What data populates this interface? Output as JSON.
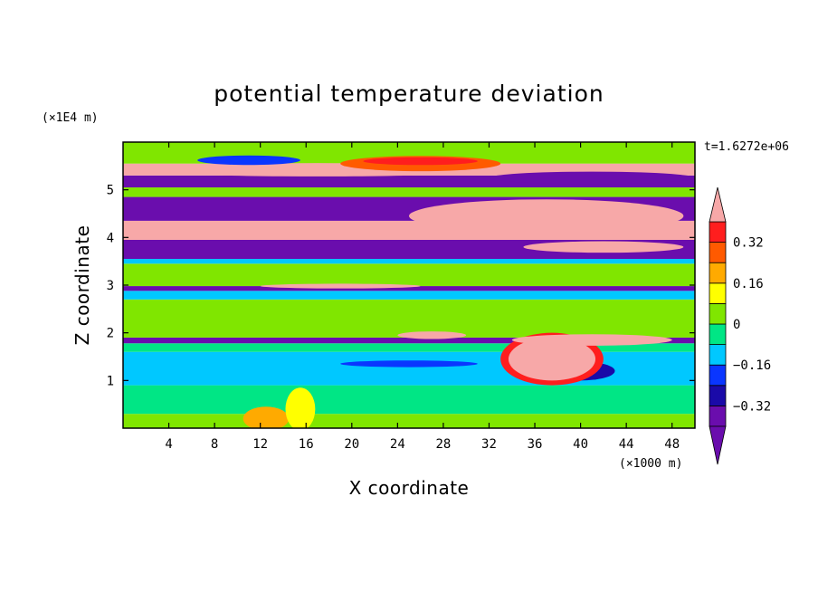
{
  "chart_data": {
    "type": "heatmap",
    "title": "potential temperature deviation",
    "xlabel": "X coordinate",
    "ylabel": "Z coordinate",
    "x_unit": "(×1000 m)",
    "y_unit": "(×1E4 m)",
    "time_label": "t=1.6272e+06",
    "xlim": [
      0,
      50
    ],
    "ylim": [
      0,
      6
    ],
    "x_ticks": [
      4,
      8,
      12,
      16,
      20,
      24,
      28,
      32,
      36,
      40,
      44,
      48
    ],
    "y_ticks": [
      1,
      2,
      3,
      4,
      5
    ],
    "colorbar": {
      "levels": [
        -0.4,
        -0.32,
        -0.24,
        -0.16,
        -0.08,
        0,
        0.08,
        0.16,
        0.24,
        0.32,
        0.4
      ],
      "colors": [
        "#6a0dad",
        "#1a0aa8",
        "#0a36ff",
        "#00c8ff",
        "#00e685",
        "#80e600",
        "#ffff00",
        "#ffaa00",
        "#ff5a00",
        "#ff1e1e",
        "#f7a8a8"
      ],
      "labels": [
        {
          "value": 0.32,
          "text": "0.32"
        },
        {
          "value": 0.16,
          "text": "0.16"
        },
        {
          "value": 0,
          "text": "0"
        },
        {
          "value": -0.16,
          "text": "−0.16"
        },
        {
          "value": -0.32,
          "text": "−0.32"
        }
      ],
      "extend": "both"
    },
    "bands": [
      {
        "z": [
          0.0,
          0.3
        ],
        "color": "#80e600"
      },
      {
        "z": [
          0.3,
          0.9
        ],
        "color": "#00e685"
      },
      {
        "z": [
          0.9,
          1.6
        ],
        "color": "#00c8ff"
      },
      {
        "z": [
          1.6,
          1.78
        ],
        "color": "#00e685"
      },
      {
        "z": [
          1.78,
          1.9
        ],
        "color": "#6a0dad"
      },
      {
        "z": [
          1.9,
          2.7
        ],
        "color": "#80e600"
      },
      {
        "z": [
          2.7,
          2.88
        ],
        "color": "#00c8ff"
      },
      {
        "z": [
          2.88,
          2.98
        ],
        "color": "#6a0dad"
      },
      {
        "z": [
          2.98,
          3.45
        ],
        "color": "#80e600"
      },
      {
        "z": [
          3.45,
          3.55
        ],
        "color": "#00c8ff"
      },
      {
        "z": [
          3.55,
          3.95
        ],
        "color": "#6a0dad"
      },
      {
        "z": [
          3.95,
          4.35
        ],
        "color": "#f7a8a8"
      },
      {
        "z": [
          4.35,
          4.85
        ],
        "color": "#6a0dad"
      },
      {
        "z": [
          4.85,
          5.05
        ],
        "color": "#80e600"
      },
      {
        "z": [
          5.05,
          5.3
        ],
        "color": "#6a0dad"
      },
      {
        "z": [
          5.3,
          5.55
        ],
        "color": "#f7a8a8"
      },
      {
        "z": [
          5.55,
          6.0
        ],
        "color": "#80e600"
      }
    ],
    "features": [
      {
        "type": "ellipse",
        "cx": 17,
        "cy": 5.42,
        "rx": 16,
        "ry": 0.14,
        "color": "#f7a8a8"
      },
      {
        "type": "ellipse",
        "cx": 41,
        "cy": 5.25,
        "rx": 9,
        "ry": 0.13,
        "color": "#6a0dad"
      },
      {
        "type": "ellipse",
        "cx": 26,
        "cy": 5.55,
        "rx": 7,
        "ry": 0.16,
        "color": "#ff5a00"
      },
      {
        "type": "ellipse",
        "cx": 26,
        "cy": 5.6,
        "rx": 5,
        "ry": 0.08,
        "color": "#ff1e1e"
      },
      {
        "type": "ellipse",
        "cx": 11,
        "cy": 5.62,
        "rx": 4.5,
        "ry": 0.1,
        "color": "#0a36ff"
      },
      {
        "type": "ellipse",
        "cx": 37,
        "cy": 4.45,
        "rx": 12,
        "ry": 0.35,
        "color": "#f7a8a8"
      },
      {
        "type": "ellipse",
        "cx": 9,
        "cy": 4.15,
        "rx": 9,
        "ry": 0.15,
        "color": "#f7a8a8"
      },
      {
        "type": "ellipse",
        "cx": 42,
        "cy": 3.8,
        "rx": 7,
        "ry": 0.12,
        "color": "#f7a8a8"
      },
      {
        "type": "ellipse",
        "cx": 19,
        "cy": 2.98,
        "rx": 7,
        "ry": 0.05,
        "color": "#f7a8a8"
      },
      {
        "type": "ellipse",
        "cx": 25,
        "cy": 1.35,
        "rx": 6,
        "ry": 0.07,
        "color": "#0a36ff"
      },
      {
        "type": "ellipse",
        "cx": 40,
        "cy": 1.2,
        "rx": 3,
        "ry": 0.2,
        "color": "#1a0aa8"
      },
      {
        "type": "ellipse",
        "cx": 37.5,
        "cy": 1.45,
        "rx": 4.5,
        "ry": 0.55,
        "color": "#ff1e1e"
      },
      {
        "type": "ellipse",
        "cx": 37.5,
        "cy": 1.45,
        "rx": 3.8,
        "ry": 0.45,
        "color": "#f7a8a8"
      },
      {
        "type": "ellipse",
        "cx": 41,
        "cy": 1.85,
        "rx": 7,
        "ry": 0.12,
        "color": "#f7a8a8"
      },
      {
        "type": "ellipse",
        "cx": 27,
        "cy": 1.95,
        "rx": 3,
        "ry": 0.08,
        "color": "#f7a8a8"
      },
      {
        "type": "ellipse",
        "cx": 12.5,
        "cy": 0.2,
        "rx": 2,
        "ry": 0.25,
        "color": "#ffaa00"
      },
      {
        "type": "ellipse",
        "cx": 15.5,
        "cy": 0.4,
        "rx": 1.3,
        "ry": 0.45,
        "color": "#ffff00"
      }
    ]
  }
}
